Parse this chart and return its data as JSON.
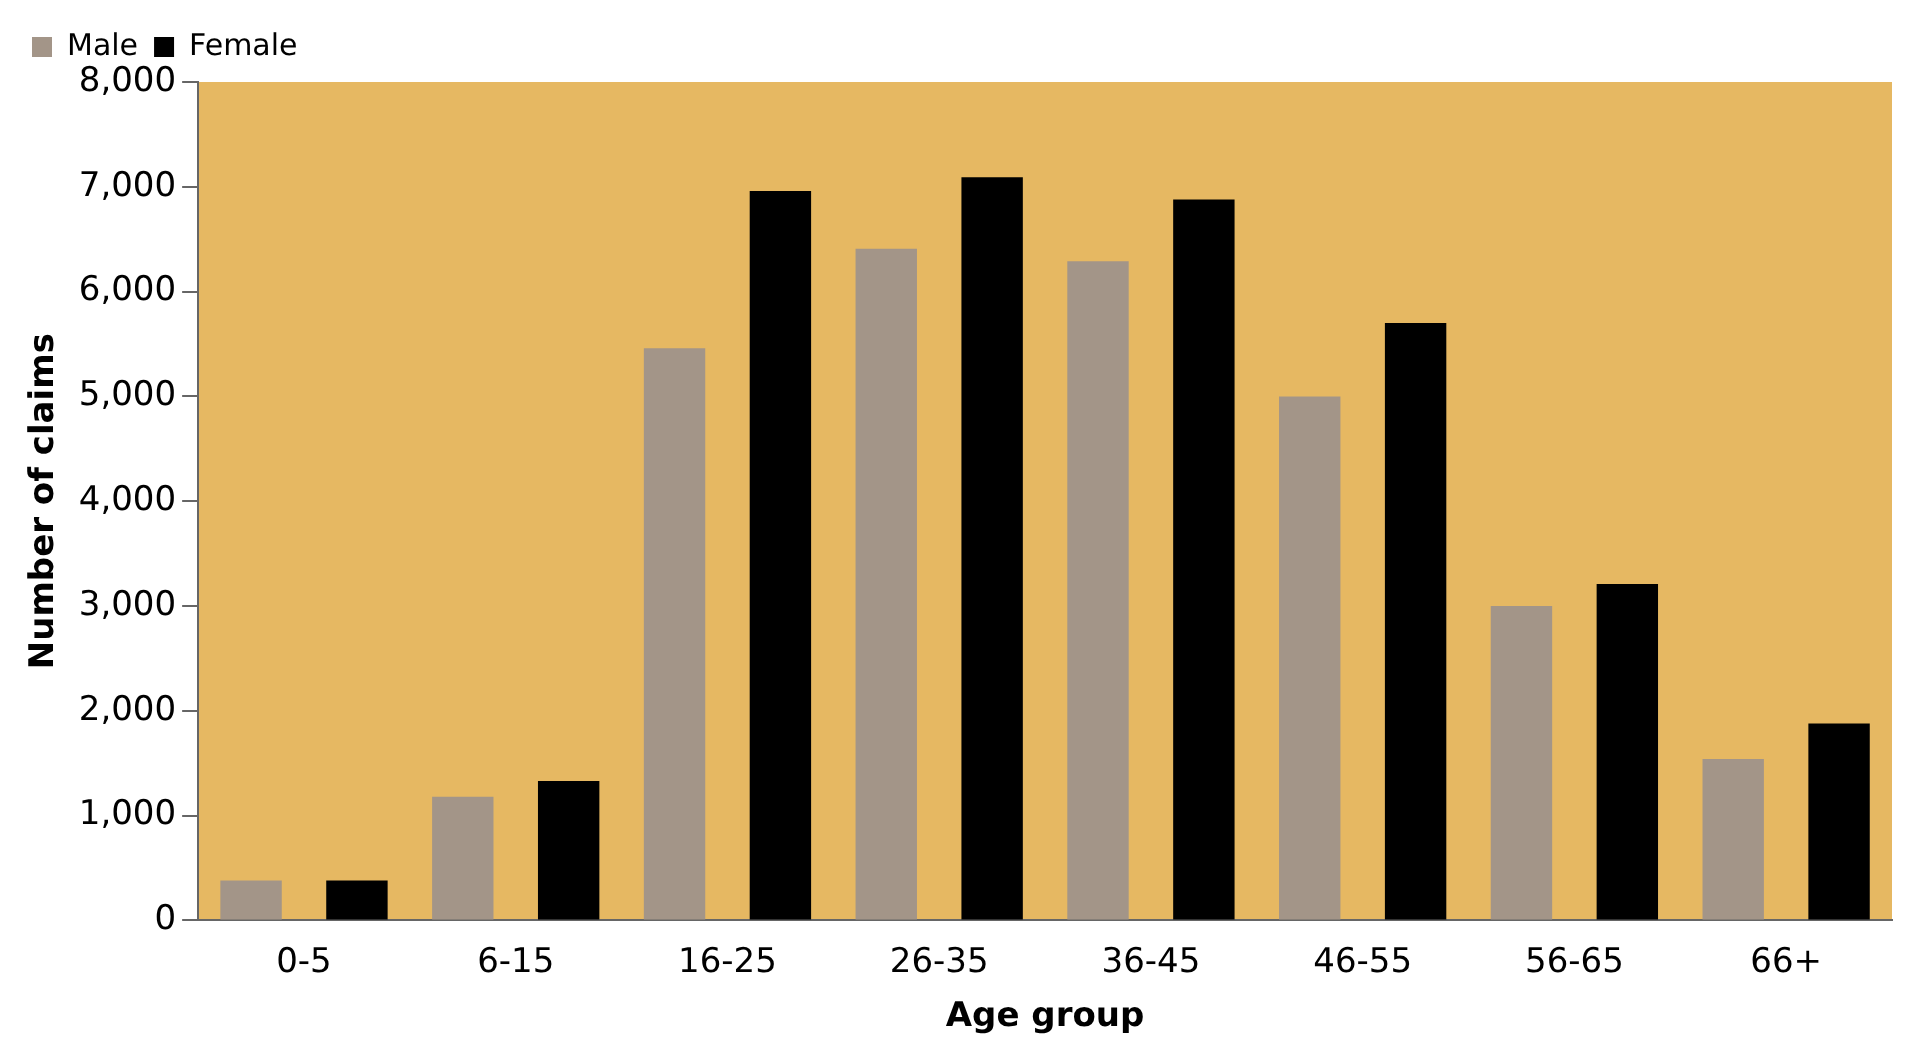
{
  "chart_data": {
    "type": "bar",
    "xlabel": "Age group",
    "ylabel": "Number of claims",
    "categories": [
      "0-5",
      "6-15",
      "16-25",
      "26-35",
      "36-45",
      "46-55",
      "56-65",
      "66+"
    ],
    "series": [
      {
        "name": "Male",
        "color": "#a39588",
        "values": [
          380,
          1180,
          5460,
          6410,
          6290,
          5000,
          3000,
          1540
        ]
      },
      {
        "name": "Female",
        "color": "#000000",
        "values": [
          380,
          1330,
          6960,
          7090,
          6880,
          5700,
          3210,
          1880
        ]
      }
    ],
    "ylim": [
      0,
      8000
    ],
    "yticks": [
      {
        "value": 0,
        "label": "0"
      },
      {
        "value": 1000,
        "label": "1,000"
      },
      {
        "value": 2000,
        "label": "2,000"
      },
      {
        "value": 3000,
        "label": "3,000"
      },
      {
        "value": 4000,
        "label": "4,000"
      },
      {
        "value": 5000,
        "label": "5,000"
      },
      {
        "value": 6000,
        "label": "6,000"
      },
      {
        "value": 7000,
        "label": "7,000"
      },
      {
        "value": 8000,
        "label": "8,000"
      }
    ],
    "grid": false,
    "legend": "top left"
  }
}
